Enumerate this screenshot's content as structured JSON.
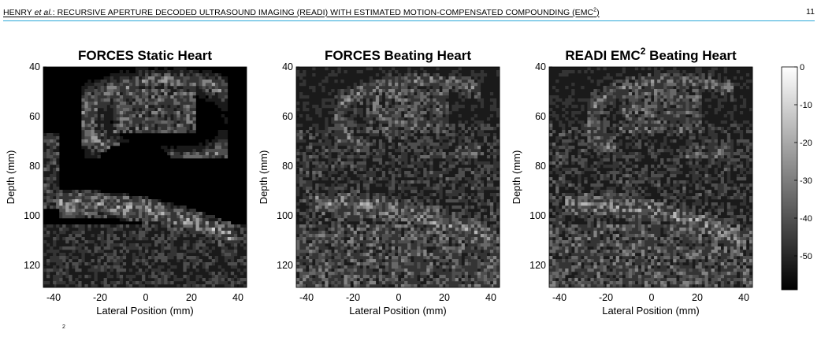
{
  "header": {
    "authors": "HENRY",
    "et_al": "et al.",
    "title": ": RECURSIVE APERTURE DECODED ULTRASOUND IMAGING (READI) WITH ESTIMATED MOTION-COMPENSATED COMPOUNDING (EMC",
    "superscript": "2",
    "close_paren": ")",
    "page_number": "11"
  },
  "figure": {
    "panels": [
      {
        "title_main": "FORCES Static Heart",
        "title_sup": "",
        "title_tail": "",
        "seed": 11,
        "variant": "static"
      },
      {
        "title_main": "FORCES Beating Heart",
        "title_sup": "",
        "title_tail": "",
        "seed": 23,
        "variant": "beating"
      },
      {
        "title_main": "READI EMC",
        "title_sup": "2",
        "title_tail": " Beating Heart",
        "seed": 37,
        "variant": "beating"
      }
    ],
    "ylabel": "Depth (mm)",
    "xlabel": "Lateral Position (mm)",
    "y_ticks": [
      "40",
      "60",
      "80",
      "100",
      "120"
    ],
    "x_ticks": [
      "-40",
      "-20",
      "0",
      "20",
      "40"
    ],
    "colorbar_ticks": [
      "0",
      "-10",
      "-20",
      "-30",
      "-40",
      "-50"
    ],
    "colormap": "gray"
  },
  "caption_fragment": "2"
}
